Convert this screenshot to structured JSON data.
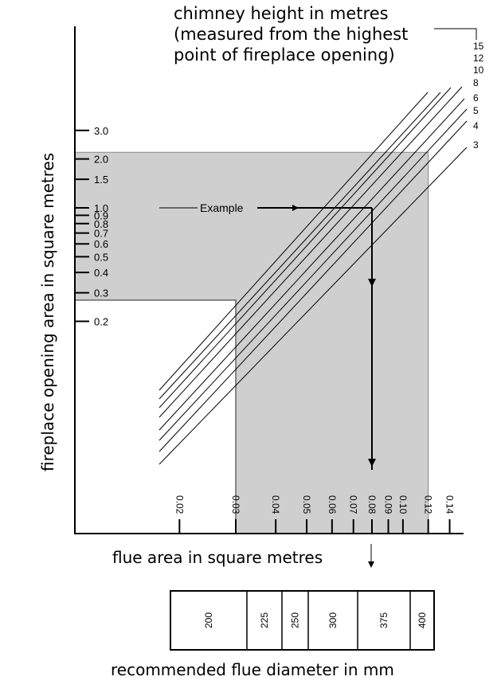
{
  "colors": {
    "shade": "#cfcfcf",
    "ink": "#000000",
    "background": "#ffffff"
  },
  "labels": {
    "chimney_line1": "chimney height in metres",
    "chimney_line2": "(measured from the highest",
    "chimney_line3": "point of fireplace opening)",
    "yaxis": "fireplace opening area in square metres",
    "xaxis": "flue area in square metres",
    "diameter": "recommended flue diameter in mm",
    "example": "Example"
  },
  "chart_data": {
    "type": "line",
    "x_scale": "log",
    "y_scale": "log",
    "xlabel": "flue area in square metres",
    "ylabel": "fireplace opening area in square metres",
    "y_ticks": [
      "3.0",
      "2.0",
      "1.5",
      "1.0",
      "0.9",
      "0.8",
      "0.7",
      "0.6",
      "0.5",
      "0.4",
      "0.3",
      "0.2"
    ],
    "x_ticks": [
      "0.02",
      "0.03",
      "0.04",
      "0.05",
      "0.06",
      "0.07",
      "0.08",
      "0.09",
      "0.10",
      "0.12",
      "0.14"
    ],
    "series_title": "chimney height in metres (measured from the highest point of fireplace opening)",
    "series": [
      {
        "name": "15"
      },
      {
        "name": "12"
      },
      {
        "name": "10"
      },
      {
        "name": "8"
      },
      {
        "name": "6"
      },
      {
        "name": "5"
      },
      {
        "name": "4"
      },
      {
        "name": "3"
      }
    ],
    "shaded_region": {
      "x": [
        0.03,
        0.12
      ],
      "y_max": 2.2,
      "excluded_below_y": 0.27
    },
    "example": {
      "fireplace_area": 1.0,
      "flue_area": 0.08
    },
    "flue_diameters_mm": [
      "200",
      "225",
      "250",
      "300",
      "375",
      "400"
    ]
  }
}
